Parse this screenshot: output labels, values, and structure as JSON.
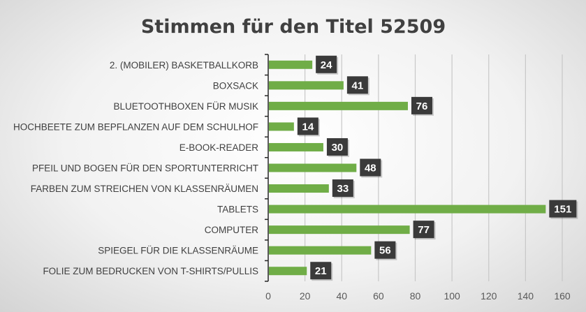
{
  "chart_data": {
    "type": "bar",
    "orientation": "horizontal",
    "title": "Stimmen für den Titel 52509",
    "xlabel": "",
    "ylabel": "",
    "categories": [
      "2. (MOBILER) BASKETBALLKORB",
      "BOXSACK",
      "BLUETOOTHBOXEN FÜR MUSIK",
      "HOCHBEETE ZUM BEPFLANZEN AUF DEM SCHULHOF",
      "E-BOOK-READER",
      "PFEIL UND BOGEN FÜR DEN SPORTUNTERRICHT",
      "FARBEN ZUM STREICHEN VON KLASSENRÄUMEN",
      "TABLETS",
      "COMPUTER",
      "SPIEGEL FÜR DIE KLASSENRÄUME",
      "FOLIE ZUM BEDRUCKEN VON T-SHIRTS/PULLIS"
    ],
    "values": [
      24,
      41,
      76,
      14,
      30,
      48,
      33,
      151,
      77,
      56,
      21
    ],
    "xlim": [
      0,
      160
    ],
    "xticks": [
      "0",
      "20",
      "40",
      "60",
      "80",
      "100",
      "120",
      "140",
      "160"
    ],
    "grid": true,
    "legend": "none",
    "bar_color": "#70ad47",
    "label_box_color": "#3a3a3a"
  }
}
